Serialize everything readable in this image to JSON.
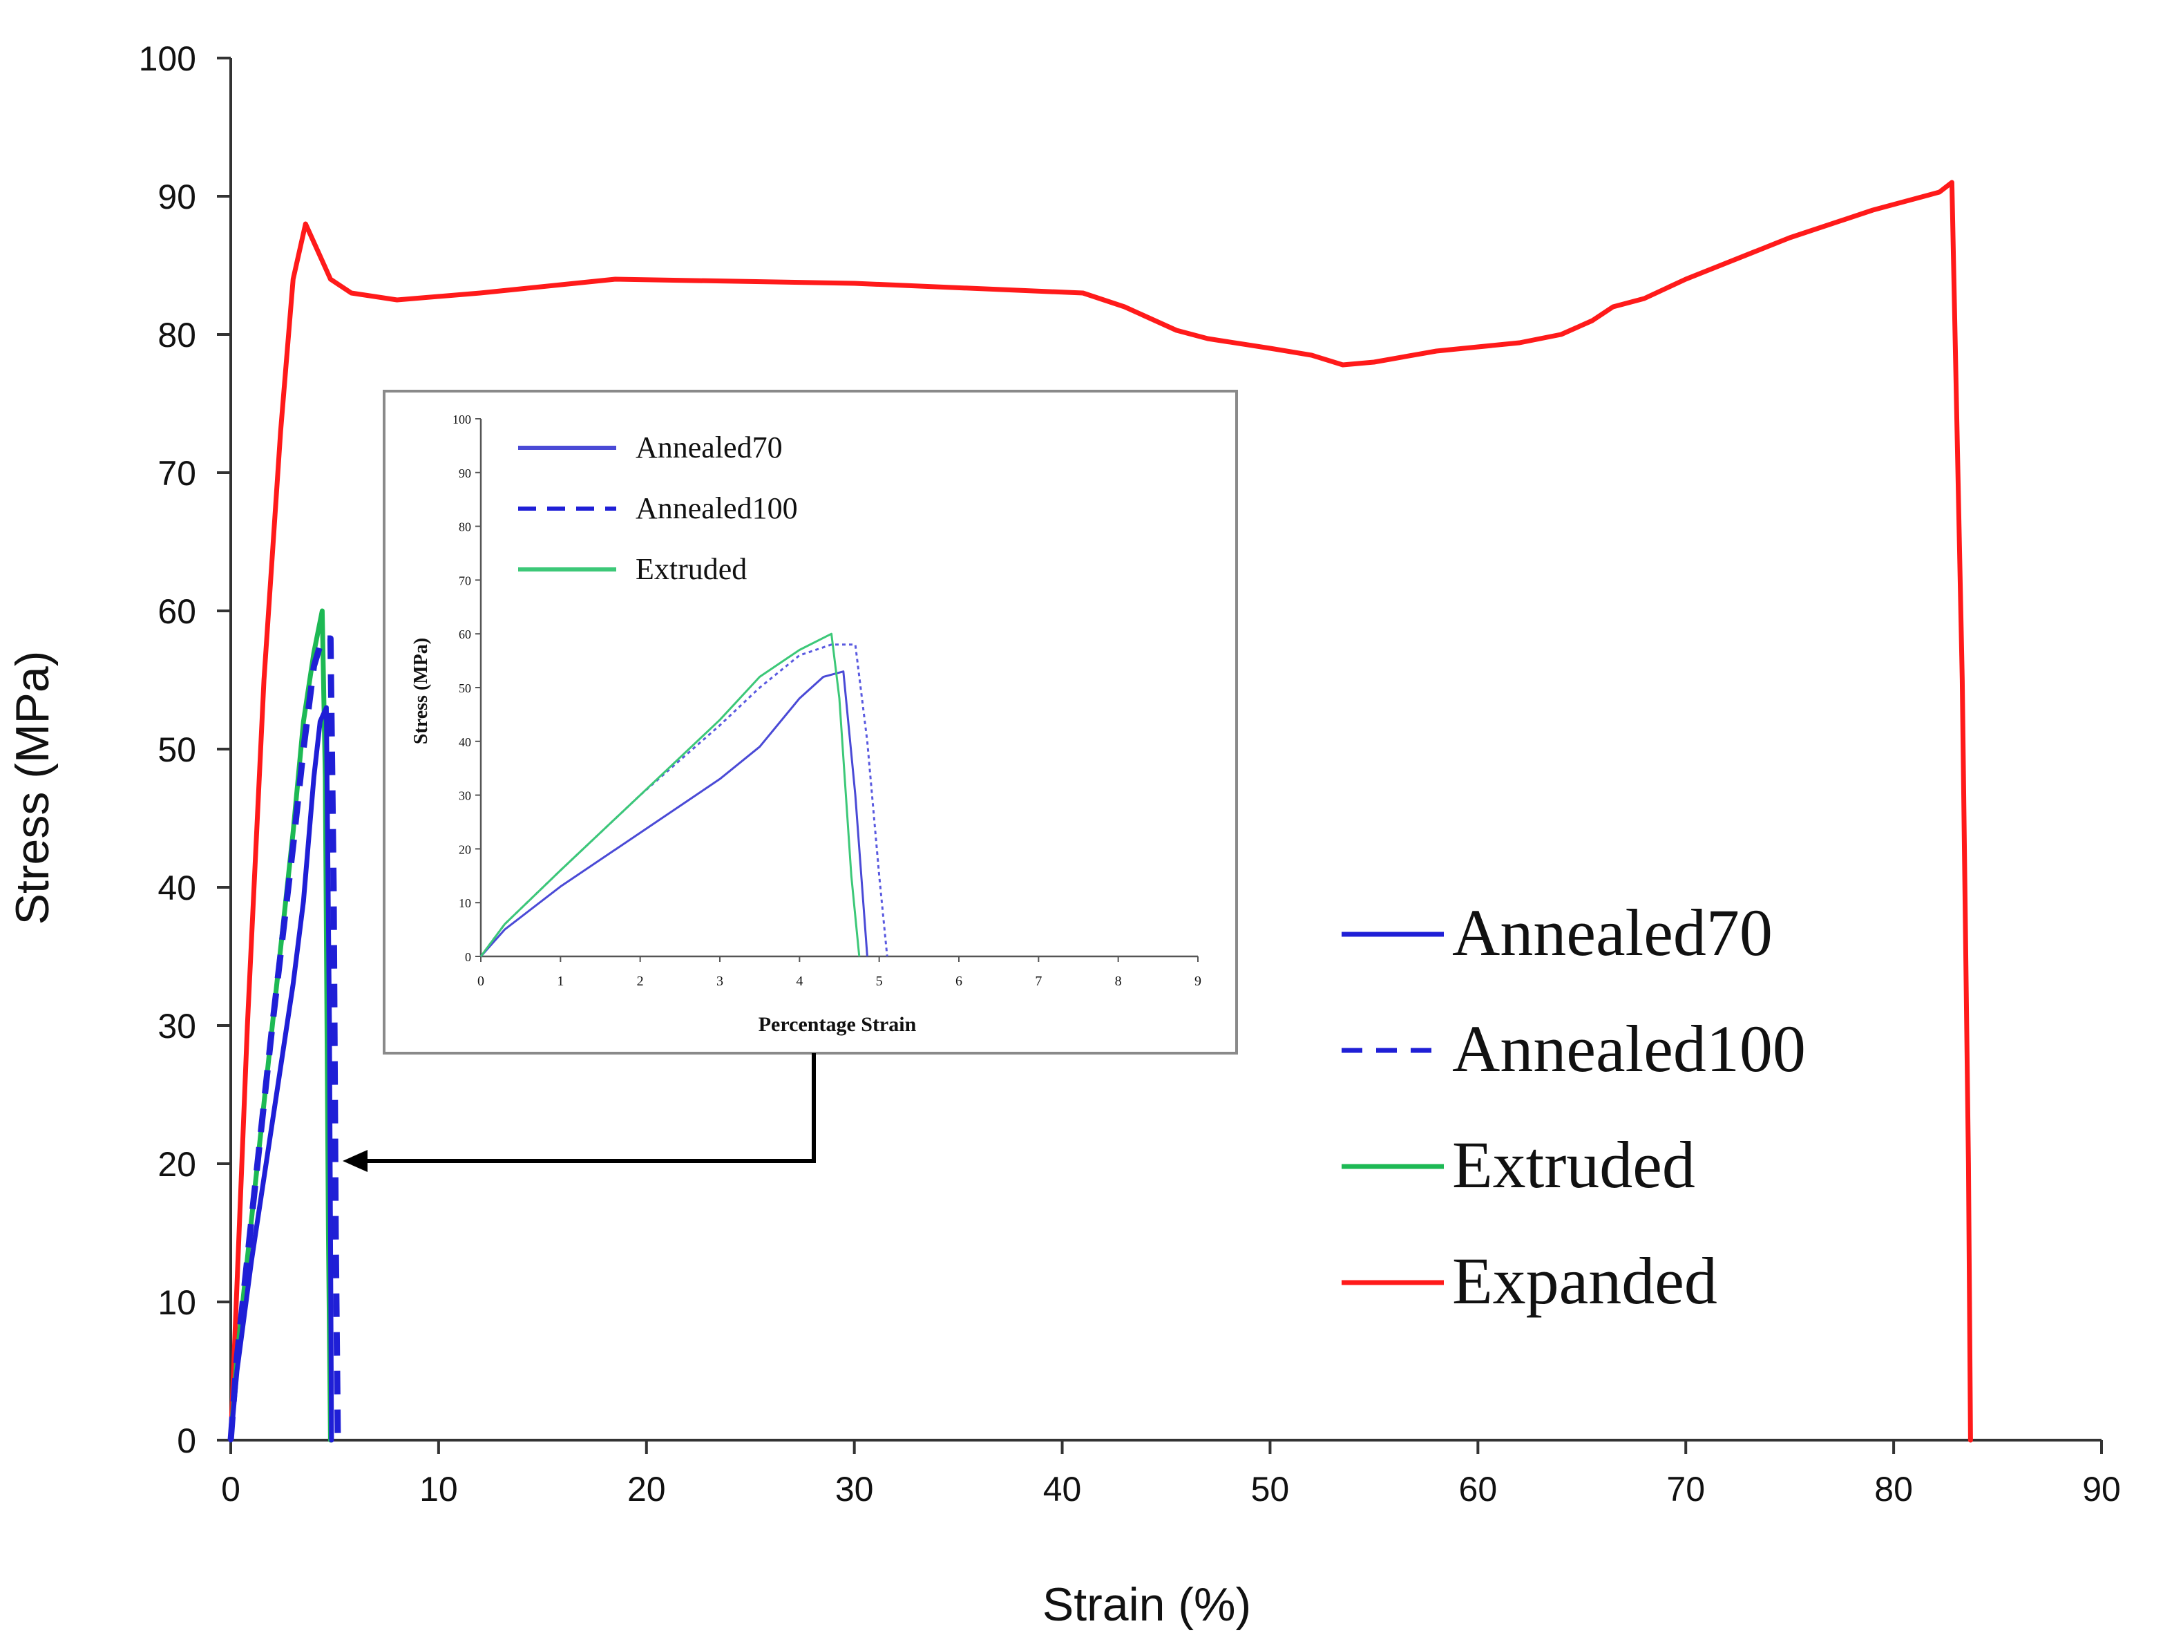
{
  "chart_data": [
    {
      "id": "main",
      "type": "line",
      "title": "",
      "xlabel": "Strain (%)",
      "ylabel": "Stress (MPa)",
      "xlim": [
        0,
        90
      ],
      "ylim": [
        0,
        100
      ],
      "xticks": [
        0,
        10,
        20,
        30,
        40,
        50,
        60,
        70,
        80,
        90
      ],
      "yticks": [
        0,
        10,
        20,
        30,
        40,
        50,
        60,
        70,
        80,
        90,
        100
      ],
      "grid": false,
      "legend_position": "right",
      "series": [
        {
          "name": "Annealed70",
          "color": "#1f1fd6",
          "dash": "solid",
          "points": [
            [
              0,
              0
            ],
            [
              0.3,
              5
            ],
            [
              1,
              13
            ],
            [
              2,
              23
            ],
            [
              3,
              33
            ],
            [
              3.5,
              39
            ],
            [
              4,
              48
            ],
            [
              4.3,
              52
            ],
            [
              4.6,
              53
            ],
            [
              4.75,
              30
            ],
            [
              4.85,
              0
            ]
          ]
        },
        {
          "name": "Annealed100",
          "color": "#1f1fd6",
          "dash": "dashed",
          "points": [
            [
              0,
              0
            ],
            [
              0.3,
              6
            ],
            [
              1,
              16
            ],
            [
              2,
              30
            ],
            [
              3,
              43
            ],
            [
              3.5,
              50
            ],
            [
              4,
              56
            ],
            [
              4.4,
              58
            ],
            [
              4.8,
              58
            ],
            [
              4.95,
              40
            ],
            [
              5.05,
              15
            ],
            [
              5.15,
              0
            ]
          ]
        },
        {
          "name": "Extruded",
          "color": "#1db954",
          "dash": "solid",
          "points": [
            [
              0,
              0
            ],
            [
              0.3,
              6
            ],
            [
              1,
              16
            ],
            [
              2,
              30
            ],
            [
              3,
              44
            ],
            [
              3.5,
              52
            ],
            [
              4,
              57
            ],
            [
              4.4,
              60
            ],
            [
              4.55,
              48
            ],
            [
              4.7,
              15
            ],
            [
              4.8,
              0
            ]
          ]
        },
        {
          "name": "Expanded",
          "color": "#ff1a1a",
          "dash": "solid",
          "points": [
            [
              0,
              0
            ],
            [
              0.8,
              30
            ],
            [
              1.6,
              55
            ],
            [
              2.4,
              73
            ],
            [
              3,
              84
            ],
            [
              3.6,
              88
            ],
            [
              4.2,
              86
            ],
            [
              4.8,
              84
            ],
            [
              5.8,
              83
            ],
            [
              8,
              82.5
            ],
            [
              12,
              83
            ],
            [
              18.5,
              84
            ],
            [
              30,
              83.7
            ],
            [
              41,
              83
            ],
            [
              43,
              82
            ],
            [
              45.5,
              80.3
            ],
            [
              47,
              79.7
            ],
            [
              50,
              79
            ],
            [
              52,
              78.5
            ],
            [
              53.5,
              77.8
            ],
            [
              55,
              78
            ],
            [
              58,
              78.8
            ],
            [
              62,
              79.4
            ],
            [
              64,
              80
            ],
            [
              65.5,
              81
            ],
            [
              66.5,
              82
            ],
            [
              68,
              82.6
            ],
            [
              70,
              84
            ],
            [
              75,
              87
            ],
            [
              79,
              89
            ],
            [
              82.2,
              90.3
            ],
            [
              82.8,
              91
            ],
            [
              83.3,
              55
            ],
            [
              83.6,
              20
            ],
            [
              83.7,
              0
            ]
          ]
        }
      ],
      "annotations": []
    },
    {
      "id": "inset",
      "type": "line",
      "title": "",
      "xlabel": "Percentage Strain",
      "ylabel": "Stress (MPa)",
      "xlim": [
        0,
        9
      ],
      "ylim": [
        0,
        100
      ],
      "xticks": [
        0,
        1,
        2,
        3,
        4,
        5,
        6,
        7,
        8,
        9
      ],
      "yticks": [
        0,
        10,
        20,
        30,
        40,
        50,
        60,
        70,
        80,
        90,
        100
      ],
      "grid": false,
      "legend_position": "top-left",
      "series": [
        {
          "name": "Annealed70",
          "color": "#4a4ad6",
          "dash": "solid",
          "points": [
            [
              0,
              0
            ],
            [
              0.3,
              5
            ],
            [
              1,
              13
            ],
            [
              2,
              23
            ],
            [
              3,
              33
            ],
            [
              3.5,
              39
            ],
            [
              4,
              48
            ],
            [
              4.3,
              52
            ],
            [
              4.55,
              53
            ],
            [
              4.7,
              30
            ],
            [
              4.85,
              0
            ]
          ]
        },
        {
          "name": "Annealed100",
          "color": "#5a5ae0",
          "dash": "dotted",
          "points": [
            [
              0,
              0
            ],
            [
              0.3,
              6
            ],
            [
              1,
              16
            ],
            [
              2,
              30
            ],
            [
              3,
              43
            ],
            [
              3.5,
              50
            ],
            [
              4,
              56
            ],
            [
              4.4,
              58
            ],
            [
              4.7,
              58
            ],
            [
              4.85,
              40
            ],
            [
              5.0,
              15
            ],
            [
              5.1,
              0
            ]
          ]
        },
        {
          "name": "Extruded",
          "color": "#3cc878",
          "dash": "solid",
          "points": [
            [
              0,
              0
            ],
            [
              0.3,
              6
            ],
            [
              1,
              16
            ],
            [
              2,
              30
            ],
            [
              3,
              44
            ],
            [
              3.5,
              52
            ],
            [
              4,
              57
            ],
            [
              4.4,
              60
            ],
            [
              4.5,
              48
            ],
            [
              4.65,
              15
            ],
            [
              4.75,
              0
            ]
          ]
        }
      ]
    }
  ],
  "colors": {
    "axis": "#333333",
    "text": "#111111",
    "arrow": "#000000",
    "inset_border": "#8a8a8a"
  }
}
